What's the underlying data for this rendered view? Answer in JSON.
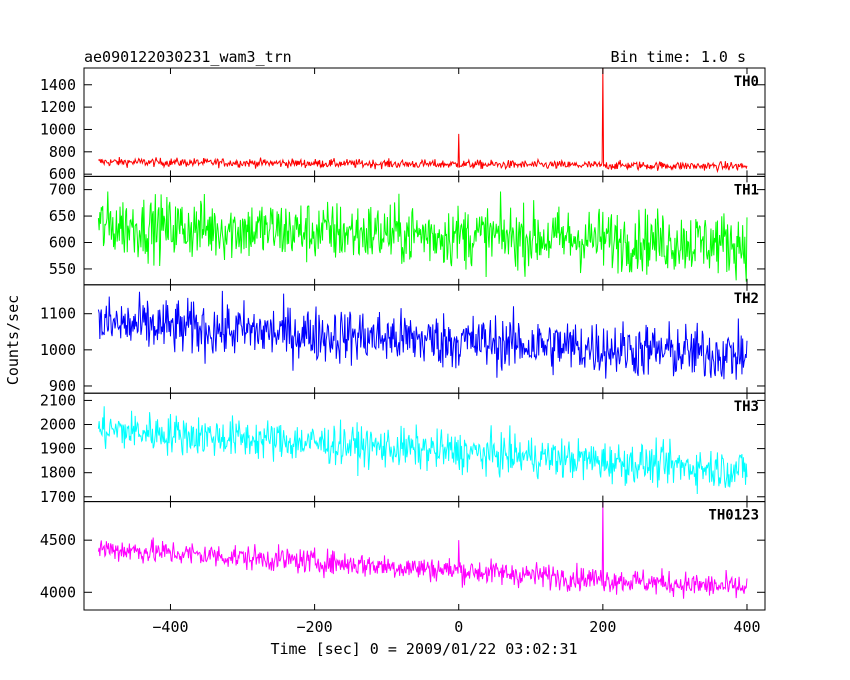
{
  "header": {
    "left": "ae090122030231_wam3_trn",
    "right": "Bin time: 1.0 s"
  },
  "chart_data": {
    "type": "line",
    "title": "ae090122030231_wam3_trn",
    "xlabel": "Time [sec] 0 = 2009/01/22 03:02:31",
    "ylabel": "Counts/sec",
    "xlim": [
      -520,
      425
    ],
    "xticks": [
      "−400",
      "−200",
      "0",
      "200",
      "400"
    ],
    "xtick_values": [
      -400,
      -200,
      0,
      200,
      400
    ],
    "bin_time": "1.0 s",
    "panels": [
      {
        "name": "TH0",
        "color": "#ff0000",
        "ylim": [
          580,
          1550
        ],
        "yticks": [
          {
            "v": 600,
            "t": "600"
          },
          {
            "v": 800,
            "t": "800"
          },
          {
            "v": 1000,
            "t": "1000"
          },
          {
            "v": 1200,
            "t": "1200"
          },
          {
            "v": 1400,
            "t": "1400"
          }
        ],
        "x_range": [
          -500,
          400
        ],
        "baseline_start": 710,
        "baseline_end": 670,
        "noise": 28,
        "spikes": [
          {
            "x": 0,
            "y": 960
          },
          {
            "x": 200,
            "y": 1550
          }
        ]
      },
      {
        "name": "TH1",
        "color": "#00ff00",
        "ylim": [
          520,
          725
        ],
        "yticks": [
          {
            "v": 550,
            "t": "550"
          },
          {
            "v": 600,
            "t": "600"
          },
          {
            "v": 650,
            "t": "650"
          },
          {
            "v": 700,
            "t": "700"
          }
        ],
        "x_range": [
          -500,
          400
        ],
        "baseline_start": 632,
        "baseline_end": 598,
        "noise": 42,
        "spikes": []
      },
      {
        "name": "TH2",
        "color": "#0000ff",
        "ylim": [
          880,
          1180
        ],
        "yticks": [
          {
            "v": 900,
            "t": "900"
          },
          {
            "v": 1000,
            "t": "1000"
          },
          {
            "v": 1100,
            "t": "1100"
          }
        ],
        "x_range": [
          -500,
          400
        ],
        "baseline_start": 1072,
        "baseline_end": 985,
        "noise": 55,
        "spikes": []
      },
      {
        "name": "TH3",
        "color": "#00ffff",
        "ylim": [
          1680,
          2130
        ],
        "yticks": [
          {
            "v": 1700,
            "t": "1700"
          },
          {
            "v": 1800,
            "t": "1800"
          },
          {
            "v": 1900,
            "t": "1900"
          },
          {
            "v": 2000,
            "t": "2000"
          },
          {
            "v": 2100,
            "t": "2100"
          }
        ],
        "x_range": [
          -500,
          400
        ],
        "baseline_start": 1980,
        "baseline_end": 1810,
        "noise": 60,
        "spikes": []
      },
      {
        "name": "TH0123",
        "color": "#ff00ff",
        "ylim": [
          3830,
          4870
        ],
        "yticks": [
          {
            "v": 4000,
            "t": "4000"
          },
          {
            "v": 4500,
            "t": "4500"
          }
        ],
        "x_range": [
          -500,
          400
        ],
        "baseline_start": 4420,
        "baseline_end": 4040,
        "noise": 85,
        "spikes": [
          {
            "x": 0,
            "y": 4500
          },
          {
            "x": 200,
            "y": 4870
          }
        ]
      }
    ]
  }
}
